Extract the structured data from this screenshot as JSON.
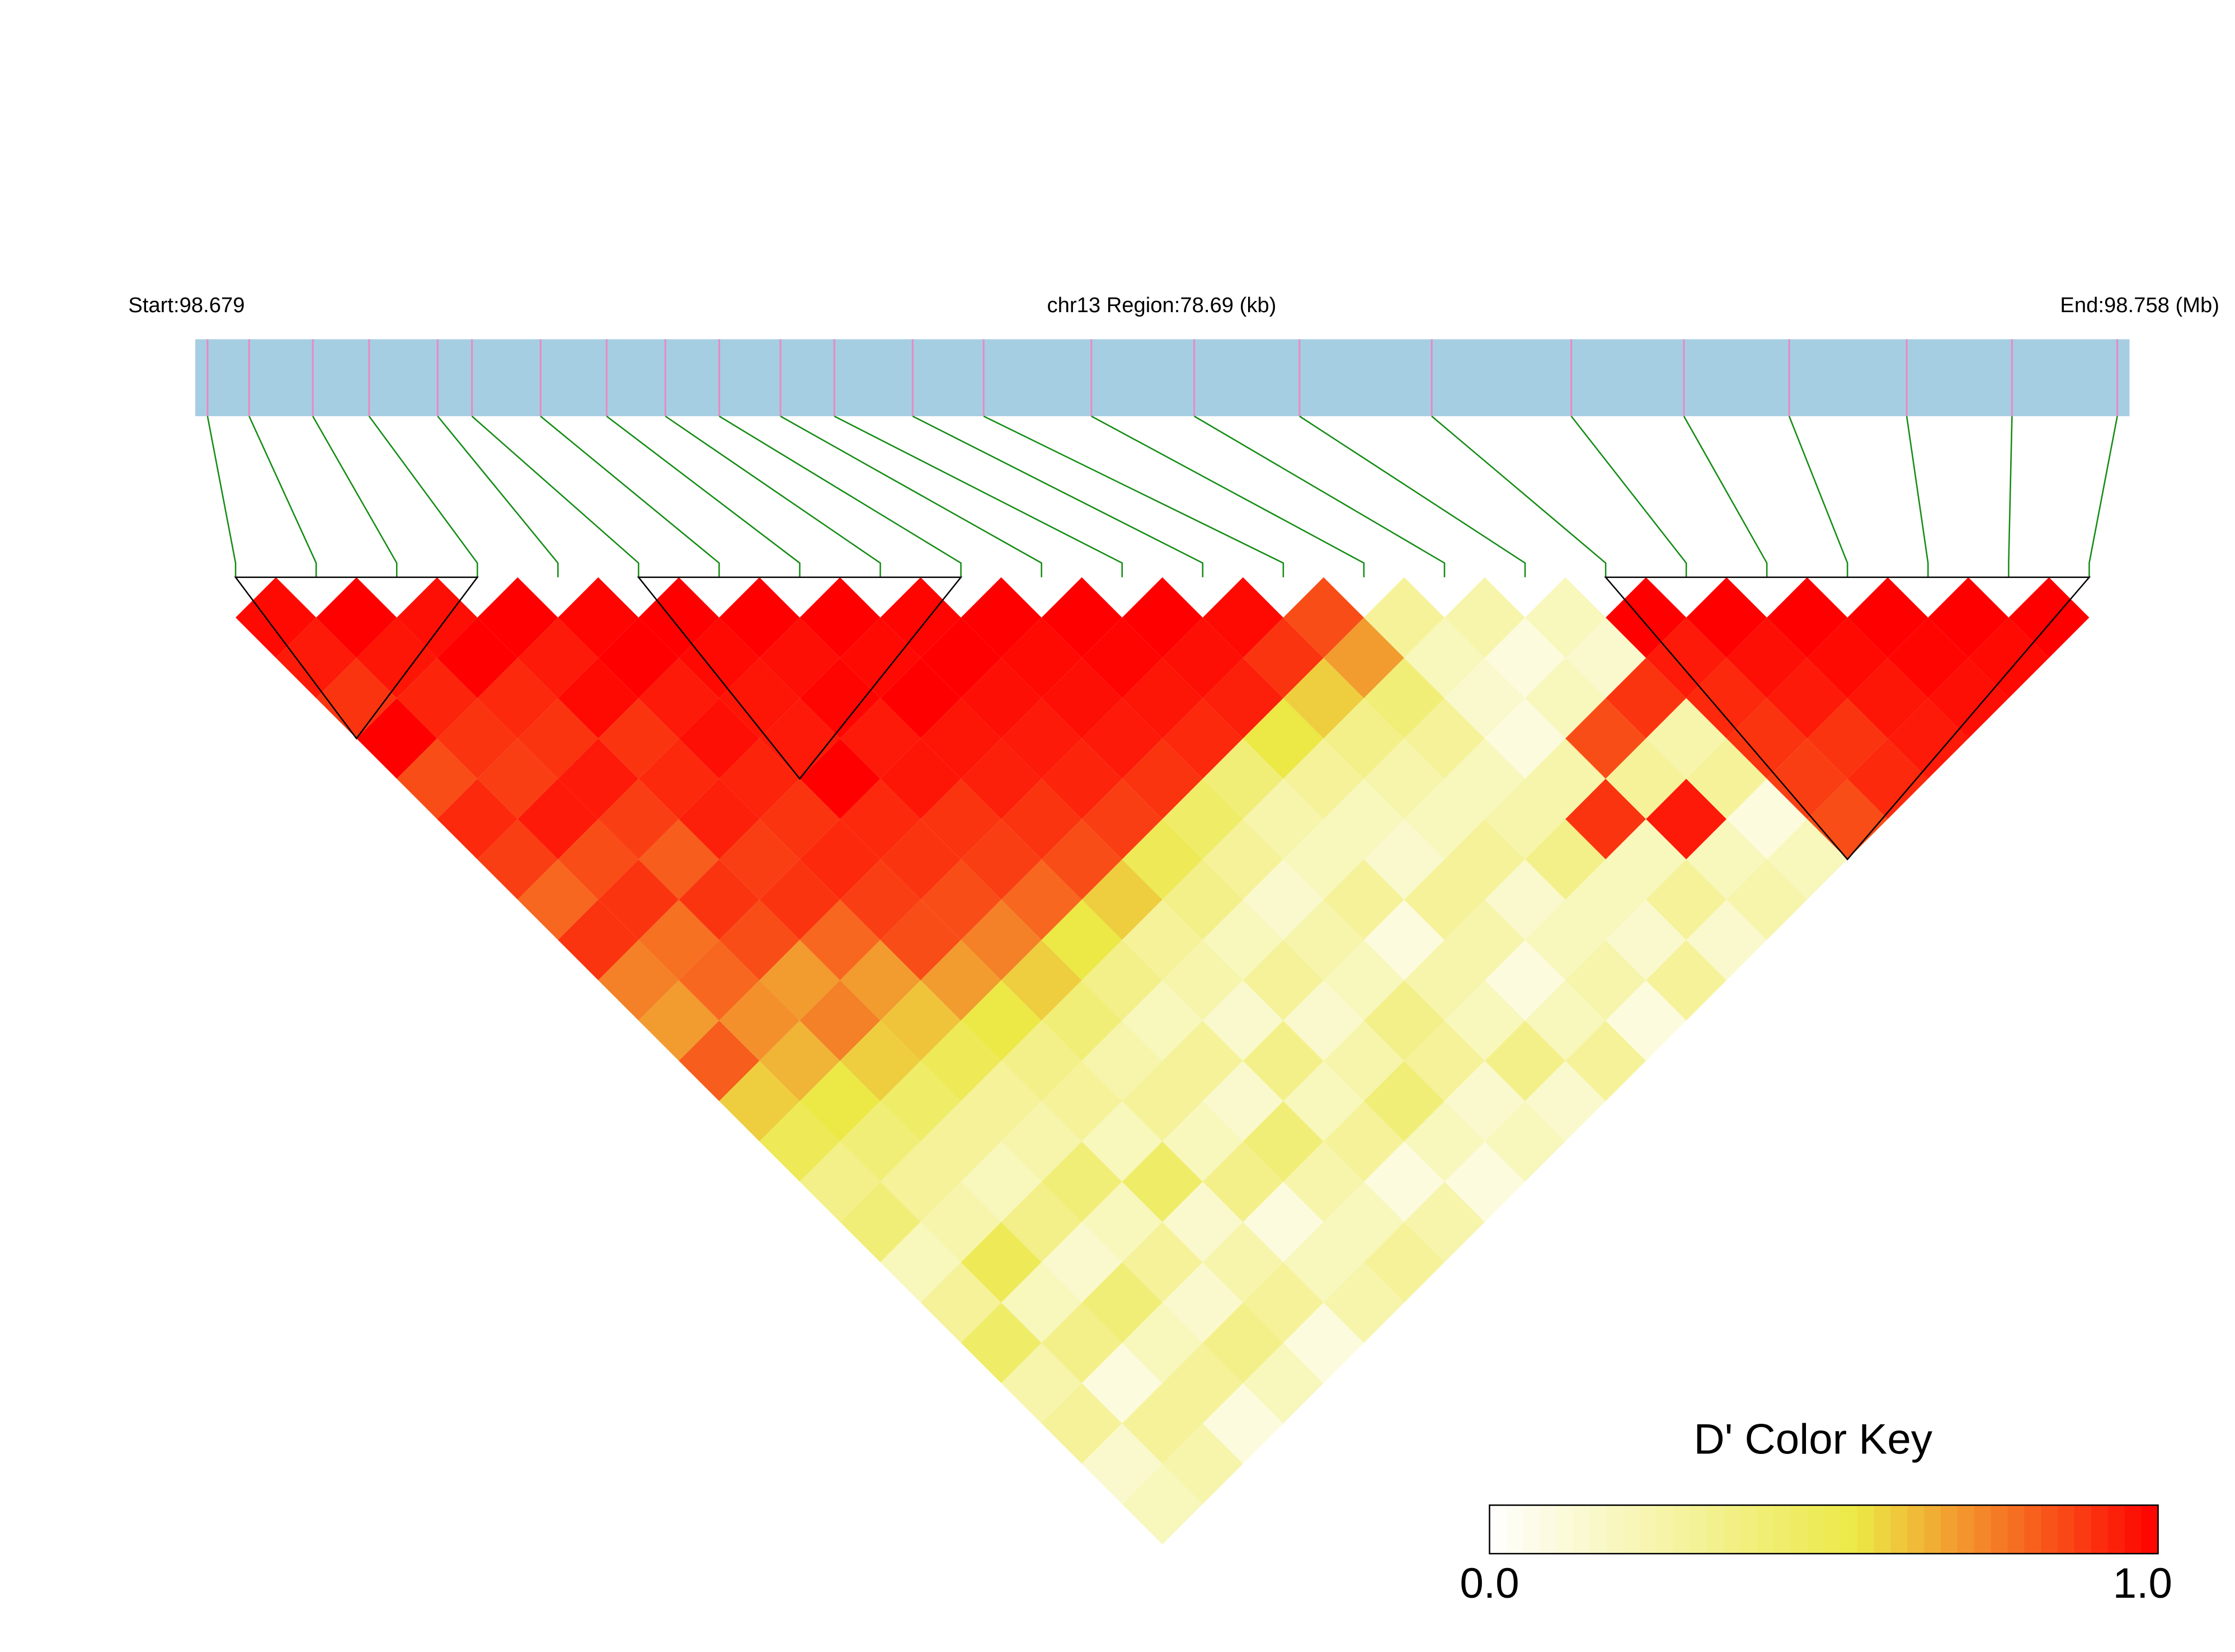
{
  "chart_data": {
    "type": "ld-heatmap",
    "start_label": "Start:98.679",
    "title": "chr13 Region:78.69 (kb)",
    "end_label": "End:98.758 (Mb)",
    "xlim": [
      98.679,
      98.758
    ],
    "positions": [
      98.6795,
      98.6812,
      98.6838,
      98.6861,
      98.6889,
      98.6903,
      98.6931,
      98.6958,
      98.6982,
      98.7004,
      98.7029,
      98.7051,
      98.7083,
      98.7112,
      98.7156,
      98.7198,
      98.7241,
      98.7295,
      98.7352,
      98.7398,
      98.7441,
      98.7489,
      98.7532,
      98.7575
    ],
    "ld": [
      [
        0.98,
        0.95,
        0.9,
        1,
        0.85,
        0.92,
        0.88,
        0.8,
        0.9,
        0.75,
        0.7,
        0.82,
        0.6,
        0.5,
        0.35,
        0.4,
        0.2,
        0.3,
        0.45,
        0.25,
        0.3,
        0.15,
        0.2
      ],
      [
        1,
        0.96,
        0.93,
        0.9,
        0.88,
        0.95,
        0.85,
        0.9,
        0.78,
        0.8,
        0.72,
        0.65,
        0.55,
        0.4,
        0.3,
        0.25,
        0.5,
        0.2,
        0.35,
        0.1,
        0.3,
        0.25
      ],
      [
        0.97,
        1,
        0.92,
        0.9,
        0.95,
        0.88,
        0.82,
        0.9,
        0.85,
        0.7,
        0.75,
        0.6,
        0.45,
        0.3,
        0.2,
        0.35,
        0.15,
        0.4,
        0.2,
        0.3,
        0.1
      ],
      [
        1,
        0.95,
        0.98,
        0.9,
        0.92,
        0.94,
        0.88,
        0.9,
        0.8,
        0.7,
        0.62,
        0.5,
        0.3,
        0.25,
        0.4,
        0.2,
        0.3,
        0.15,
        0.35,
        0.2
      ],
      [
        0.99,
        1,
        0.95,
        0.97,
        0.93,
        0.9,
        0.92,
        0.88,
        0.85,
        0.7,
        0.55,
        0.35,
        0.3,
        0.2,
        0.45,
        0.15,
        0.25,
        0.3,
        0.1
      ],
      [
        1,
        0.98,
        0.96,
        0.95,
        1,
        0.92,
        0.9,
        0.85,
        0.75,
        0.6,
        0.4,
        0.25,
        0.3,
        0.2,
        0.35,
        0.1,
        0.2,
        0.25
      ],
      [
        1,
        0.97,
        0.99,
        0.95,
        0.96,
        0.9,
        0.88,
        0.8,
        0.55,
        0.35,
        0.2,
        0.3,
        0.15,
        0.4,
        0.25,
        0.2,
        0.3
      ],
      [
        1,
        0.98,
        1,
        0.96,
        0.94,
        0.9,
        0.85,
        0.6,
        0.3,
        0.25,
        0.15,
        0.35,
        0.2,
        0.3,
        0.1,
        0.25
      ],
      [
        0.99,
        1,
        0.97,
        0.95,
        0.93,
        0.88,
        0.5,
        0.35,
        0.2,
        0.3,
        0.15,
        0.25,
        0.4,
        0.2,
        0.1
      ],
      [
        1,
        0.98,
        0.97,
        0.95,
        0.9,
        0.45,
        0.3,
        0.15,
        0.25,
        0.2,
        0.35,
        0.3,
        0.15,
        0.2
      ],
      [
        1,
        0.99,
        0.96,
        0.92,
        0.4,
        0.25,
        0.2,
        0.3,
        0.1,
        0.25,
        0.2,
        0.35,
        0.15
      ],
      [
        1,
        0.97,
        0.94,
        0.55,
        0.3,
        0.2,
        0.15,
        0.3,
        0.25,
        0.1,
        0.2,
        0.3
      ],
      [
        0.98,
        0.9,
        0.6,
        0.35,
        0.25,
        0.2,
        0.3,
        0.15,
        0.2,
        0.25,
        0.1
      ],
      [
        0.85,
        0.7,
        0.4,
        0.3,
        0.2,
        0.25,
        0.35,
        0.2,
        0.15,
        0.3
      ],
      [
        0.3,
        0.2,
        0.15,
        0.1,
        0.25,
        0.9,
        0.2,
        0.3,
        0.15
      ],
      [
        0.25,
        0.1,
        0.2,
        0.85,
        0.3,
        0.95,
        0.2,
        0.25
      ],
      [
        0.2,
        0.15,
        0.9,
        0.25,
        0.3,
        0.1,
        0.2
      ],
      [
        1,
        0.95,
        0.92,
        0.9,
        0.88,
        0.85
      ],
      [
        1,
        0.97,
        0.95,
        0.9,
        0.92
      ],
      [
        1,
        0.98,
        0.96,
        0.95
      ],
      [
        1,
        0.99,
        0.97
      ],
      [
        1,
        0.98
      ],
      [
        1
      ]
    ],
    "blocks": [
      [
        0,
        3
      ],
      [
        5,
        9
      ],
      [
        17,
        23
      ]
    ],
    "colorscale": {
      "stops": [
        0,
        0.55,
        1
      ],
      "colors": [
        "#ffffff",
        "#ece846",
        "#ff0000"
      ]
    },
    "legend_title": "D' Color Key",
    "legend_ticks": [
      {
        "value": 0,
        "label": "0.0"
      },
      {
        "value": 1,
        "label": "1.0"
      }
    ],
    "bar_color": "#a6cee3",
    "snp_color": "#e78ac3",
    "connector_color": "#138c13"
  }
}
